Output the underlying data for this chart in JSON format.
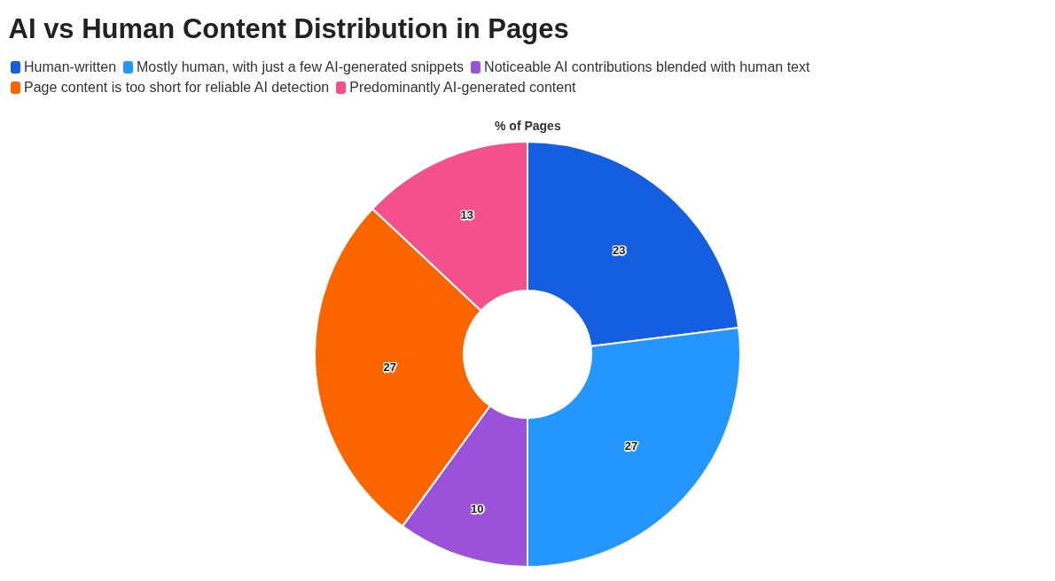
{
  "chart_data": {
    "type": "donut",
    "title": "AI vs Human Content Distribution in Pages",
    "subtitle": "% of Pages",
    "categories": [
      "Human-written",
      "Mostly human, with just a few AI-generated snippets",
      "Noticeable AI contributions blended with human text",
      "Page content is too short for reliable AI detection",
      "Predominantly AI-generated content"
    ],
    "values": [
      23,
      27,
      10,
      27,
      13
    ],
    "colors": [
      "#155ee0",
      "#2596fd",
      "#9a52d9",
      "#fb6500",
      "#f4518c"
    ],
    "data_labels": true,
    "legend": "top left"
  }
}
